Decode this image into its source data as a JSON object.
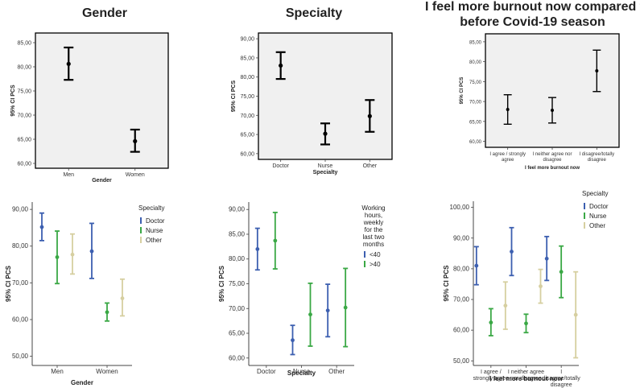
{
  "titles": {
    "gender": "Gender",
    "specialty": "Specialty",
    "burnout_line1": "I feel more burnout now compared to",
    "burnout_line2": "before Covid-19 season"
  },
  "colors": {
    "doctor": "#3c5fb0",
    "nurse": "#3aa845",
    "other": "#d6cfa0",
    "lt40": "#3c5fb0",
    "gt40": "#3aa845",
    "black": "#000000",
    "panel_bg": "#f0f0f0"
  },
  "chart_data": [
    {
      "id": "c1",
      "type": "errorbar",
      "title": "Gender",
      "xlabel": "Gender",
      "ylabel": "95% CI PCS",
      "ylim": [
        59,
        87
      ],
      "yticks": [
        "60,00",
        "65,00",
        "70,00",
        "75,00",
        "80,00",
        "85,00"
      ],
      "ytick_values": [
        60,
        65,
        70,
        75,
        80,
        85
      ],
      "categories": [
        "Men",
        "Women"
      ],
      "series": [
        {
          "name": "",
          "color": "black",
          "points": [
            {
              "mean": 80.6,
              "low": 77.3,
              "high": 84.0
            },
            {
              "mean": 64.6,
              "low": 62.4,
              "high": 67.0
            }
          ]
        }
      ]
    },
    {
      "id": "c2",
      "type": "errorbar",
      "title": "Specialty",
      "xlabel": "Specialty",
      "ylabel": "95% CI PCS",
      "ylim": [
        58.5,
        91.5
      ],
      "yticks": [
        "60,00",
        "65,00",
        "70,00",
        "75,00",
        "80,00",
        "85,00",
        "90,00"
      ],
      "ytick_values": [
        60,
        65,
        70,
        75,
        80,
        85,
        90
      ],
      "categories": [
        "Doctor",
        "Nurse",
        "Other"
      ],
      "series": [
        {
          "name": "",
          "color": "black",
          "points": [
            {
              "mean": 83.0,
              "low": 79.5,
              "high": 86.5
            },
            {
              "mean": 65.2,
              "low": 62.4,
              "high": 67.9
            },
            {
              "mean": 69.8,
              "low": 65.7,
              "high": 74.0
            }
          ]
        }
      ]
    },
    {
      "id": "c3",
      "type": "errorbar",
      "title": "I feel more burnout now compared to before Covid-19 season",
      "xlabel": "I feel more burnout now",
      "ylabel": "95% CI PCS",
      "ylim": [
        58.5,
        87
      ],
      "yticks": [
        "60,00",
        "65,00",
        "70,00",
        "75,00",
        "80,00",
        "85,00"
      ],
      "ytick_values": [
        60,
        65,
        70,
        75,
        80,
        85
      ],
      "categories": [
        [
          "I agree / strongly",
          "agree"
        ],
        [
          "I neither agree nor",
          "disagree"
        ],
        [
          "I disagree/totally",
          "disagree"
        ]
      ],
      "series": [
        {
          "name": "",
          "color": "black",
          "points": [
            {
              "mean": 68.0,
              "low": 64.3,
              "high": 71.7
            },
            {
              "mean": 67.8,
              "low": 64.6,
              "high": 71.0
            },
            {
              "mean": 77.7,
              "low": 72.5,
              "high": 82.9
            }
          ]
        }
      ]
    },
    {
      "id": "c4",
      "type": "errorbar",
      "title": "",
      "xlabel": "Gender",
      "ylabel": "95% CI PCS",
      "ylim": [
        47.5,
        92
      ],
      "yticks": [
        "50,00",
        "60,00",
        "70,00",
        "80,00",
        "90,00"
      ],
      "ytick_values": [
        50,
        60,
        70,
        80,
        90
      ],
      "categories": [
        "Men",
        "Women"
      ],
      "legend": {
        "title": "Specialty",
        "position": "right"
      },
      "series": [
        {
          "name": "Doctor",
          "color": "doctor",
          "points": [
            {
              "mean": 85.2,
              "low": 81.5,
              "high": 89.0
            },
            {
              "mean": 78.6,
              "low": 71.2,
              "high": 86.2
            }
          ]
        },
        {
          "name": "Nurse",
          "color": "nurse",
          "points": [
            {
              "mean": 77.0,
              "low": 69.8,
              "high": 84.1
            },
            {
              "mean": 62.0,
              "low": 59.6,
              "high": 64.5
            }
          ]
        },
        {
          "name": "Other",
          "color": "other",
          "points": [
            {
              "mean": 77.7,
              "low": 72.4,
              "high": 83.3
            },
            {
              "mean": 65.8,
              "low": 61.0,
              "high": 71.0
            }
          ]
        }
      ]
    },
    {
      "id": "c5",
      "type": "errorbar",
      "title": "",
      "xlabel": "Specialty",
      "ylabel": "95% CI PCS",
      "ylim": [
        58.5,
        91.5
      ],
      "yticks": [
        "60,00",
        "65,00",
        "70,00",
        "75,00",
        "80,00",
        "85,00",
        "90,00"
      ],
      "ytick_values": [
        60,
        65,
        70,
        75,
        80,
        85,
        90
      ],
      "categories": [
        "Doctor",
        "Nurse",
        "Other"
      ],
      "legend": {
        "title_lines": [
          "Working",
          "hours,",
          "weekly",
          "for the",
          "last two",
          "months"
        ],
        "position": "right"
      },
      "series": [
        {
          "name": "<40",
          "color": "lt40",
          "points": [
            {
              "mean": 82.0,
              "low": 77.8,
              "high": 86.2
            },
            {
              "mean": 63.6,
              "low": 60.7,
              "high": 66.6
            },
            {
              "mean": 69.6,
              "low": 64.3,
              "high": 74.9
            }
          ]
        },
        {
          "name": ">40",
          "color": "gt40",
          "points": [
            {
              "mean": 83.7,
              "low": 78.0,
              "high": 89.4
            },
            {
              "mean": 68.8,
              "low": 62.4,
              "high": 75.1
            },
            {
              "mean": 70.2,
              "low": 62.3,
              "high": 78.1
            }
          ]
        }
      ]
    },
    {
      "id": "c6",
      "type": "errorbar",
      "title": "",
      "xlabel": "I feel more burnout now",
      "ylabel": "95% CI PCS",
      "ylim": [
        48.5,
        102
      ],
      "yticks": [
        "50,00",
        "60,00",
        "70,00",
        "80,00",
        "90,00",
        "100,00"
      ],
      "ytick_values": [
        50,
        60,
        70,
        80,
        90,
        100
      ],
      "categories": [
        [
          "I agree /",
          "strongly agree"
        ],
        [
          "I neither agree",
          "nor disagree"
        ],
        [
          "I",
          "disagree/totally",
          "disagree"
        ]
      ],
      "legend": {
        "title": "Specialty",
        "position": "right"
      },
      "series": [
        {
          "name": "Doctor",
          "color": "doctor",
          "points": [
            {
              "mean": 81.0,
              "low": 74.8,
              "high": 87.2
            },
            {
              "mean": 85.6,
              "low": 77.8,
              "high": 93.4
            },
            {
              "mean": 83.3,
              "low": 76.2,
              "high": 90.5
            }
          ]
        },
        {
          "name": "Nurse",
          "color": "nurse",
          "points": [
            {
              "mean": 62.5,
              "low": 58.2,
              "high": 67.0
            },
            {
              "mean": 62.2,
              "low": 59.2,
              "high": 65.2
            },
            {
              "mean": 79.0,
              "low": 70.6,
              "high": 87.4
            }
          ]
        },
        {
          "name": "Other",
          "color": "other",
          "points": [
            {
              "mean": 68.0,
              "low": 60.3,
              "high": 75.7
            },
            {
              "mean": 74.3,
              "low": 68.8,
              "high": 79.8
            },
            {
              "mean": 65.0,
              "low": 51.0,
              "high": 79.0
            }
          ]
        }
      ]
    }
  ]
}
